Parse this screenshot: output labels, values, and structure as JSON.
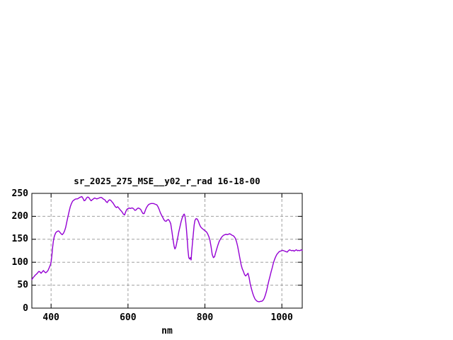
{
  "window": {
    "background": "#ffffff"
  },
  "chart_data": {
    "type": "line",
    "title": "sr_2025_275_MSE__y02_r_rad 16-18-00",
    "xlabel": "nm",
    "ylabel": "",
    "xlim": [
      350,
      1053
    ],
    "ylim": [
      0,
      250
    ],
    "xticks": [
      400,
      600,
      800,
      1000
    ],
    "yticks": [
      0,
      50,
      100,
      150,
      200,
      250
    ],
    "grid": true,
    "legend": false,
    "colors": {
      "line": "#9400d3",
      "grid": "#a0a0a0",
      "axis": "#000000",
      "text": "#000000"
    },
    "series": [
      {
        "name": "sr_2025_275_MSE__y02_r_rad",
        "color": "#9400d3",
        "points": [
          [
            350,
            62
          ],
          [
            353,
            66
          ],
          [
            356,
            69
          ],
          [
            359,
            72
          ],
          [
            362,
            74
          ],
          [
            365,
            77
          ],
          [
            368,
            80
          ],
          [
            371,
            79
          ],
          [
            374,
            76
          ],
          [
            377,
            79
          ],
          [
            380,
            82
          ],
          [
            383,
            79
          ],
          [
            386,
            77
          ],
          [
            389,
            79
          ],
          [
            392,
            82
          ],
          [
            395,
            88
          ],
          [
            398,
            94
          ],
          [
            400,
            100
          ],
          [
            402,
            115
          ],
          [
            404,
            132
          ],
          [
            406,
            146
          ],
          [
            408,
            155
          ],
          [
            410,
            160
          ],
          [
            412,
            164
          ],
          [
            414,
            166
          ],
          [
            416,
            167
          ],
          [
            418,
            168
          ],
          [
            420,
            168
          ],
          [
            423,
            165
          ],
          [
            426,
            162
          ],
          [
            429,
            160
          ],
          [
            432,
            163
          ],
          [
            435,
            168
          ],
          [
            438,
            176
          ],
          [
            441,
            188
          ],
          [
            444,
            200
          ],
          [
            447,
            211
          ],
          [
            450,
            221
          ],
          [
            453,
            228
          ],
          [
            456,
            233
          ],
          [
            459,
            235
          ],
          [
            462,
            237
          ],
          [
            465,
            238
          ],
          [
            468,
            238
          ],
          [
            471,
            239
          ],
          [
            474,
            241
          ],
          [
            477,
            242
          ],
          [
            480,
            243
          ],
          [
            483,
            239
          ],
          [
            486,
            234
          ],
          [
            489,
            235
          ],
          [
            492,
            240
          ],
          [
            495,
            242
          ],
          [
            498,
            241
          ],
          [
            501,
            237
          ],
          [
            504,
            234
          ],
          [
            507,
            236
          ],
          [
            510,
            238
          ],
          [
            513,
            240
          ],
          [
            516,
            239
          ],
          [
            519,
            238
          ],
          [
            522,
            239
          ],
          [
            525,
            240
          ],
          [
            528,
            241
          ],
          [
            531,
            241
          ],
          [
            534,
            239
          ],
          [
            537,
            237
          ],
          [
            540,
            236
          ],
          [
            543,
            232
          ],
          [
            546,
            230
          ],
          [
            549,
            234
          ],
          [
            552,
            236
          ],
          [
            555,
            235
          ],
          [
            558,
            232
          ],
          [
            561,
            229
          ],
          [
            564,
            225
          ],
          [
            567,
            221
          ],
          [
            570,
            219
          ],
          [
            573,
            221
          ],
          [
            576,
            218
          ],
          [
            579,
            215
          ],
          [
            582,
            212
          ],
          [
            585,
            209
          ],
          [
            588,
            205
          ],
          [
            591,
            203
          ],
          [
            594,
            210
          ],
          [
            597,
            215
          ],
          [
            600,
            217
          ],
          [
            603,
            218
          ],
          [
            606,
            217
          ],
          [
            609,
            218
          ],
          [
            612,
            218
          ],
          [
            615,
            216
          ],
          [
            618,
            213
          ],
          [
            621,
            214
          ],
          [
            624,
            217
          ],
          [
            627,
            218
          ],
          [
            630,
            217
          ],
          [
            633,
            215
          ],
          [
            636,
            210
          ],
          [
            639,
            206
          ],
          [
            642,
            206
          ],
          [
            645,
            213
          ],
          [
            648,
            219
          ],
          [
            651,
            223
          ],
          [
            654,
            226
          ],
          [
            657,
            227
          ],
          [
            660,
            228
          ],
          [
            663,
            228
          ],
          [
            666,
            228
          ],
          [
            669,
            227
          ],
          [
            672,
            226
          ],
          [
            675,
            225
          ],
          [
            678,
            221
          ],
          [
            681,
            215
          ],
          [
            684,
            208
          ],
          [
            687,
            203
          ],
          [
            690,
            198
          ],
          [
            693,
            193
          ],
          [
            696,
            190
          ],
          [
            699,
            189
          ],
          [
            702,
            192
          ],
          [
            705,
            193
          ],
          [
            708,
            190
          ],
          [
            711,
            184
          ],
          [
            714,
            168
          ],
          [
            717,
            150
          ],
          [
            720,
            134
          ],
          [
            722,
            129
          ],
          [
            724,
            132
          ],
          [
            726,
            139
          ],
          [
            729,
            152
          ],
          [
            732,
            166
          ],
          [
            735,
            177
          ],
          [
            738,
            188
          ],
          [
            741,
            197
          ],
          [
            744,
            203
          ],
          [
            746,
            205
          ],
          [
            748,
            201
          ],
          [
            750,
            188
          ],
          [
            752,
            172
          ],
          [
            754,
            150
          ],
          [
            756,
            126
          ],
          [
            758,
            110
          ],
          [
            760,
            107
          ],
          [
            762,
            110
          ],
          [
            764,
            105
          ],
          [
            766,
            126
          ],
          [
            768,
            145
          ],
          [
            770,
            163
          ],
          [
            772,
            181
          ],
          [
            774,
            191
          ],
          [
            777,
            195
          ],
          [
            780,
            194
          ],
          [
            783,
            189
          ],
          [
            786,
            182
          ],
          [
            789,
            177
          ],
          [
            792,
            174
          ],
          [
            795,
            172
          ],
          [
            798,
            170
          ],
          [
            801,
            168
          ],
          [
            804,
            166
          ],
          [
            807,
            162
          ],
          [
            810,
            156
          ],
          [
            813,
            148
          ],
          [
            816,
            134
          ],
          [
            819,
            117
          ],
          [
            822,
            110
          ],
          [
            825,
            112
          ],
          [
            828,
            121
          ],
          [
            831,
            130
          ],
          [
            834,
            138
          ],
          [
            837,
            145
          ],
          [
            840,
            150
          ],
          [
            843,
            154
          ],
          [
            846,
            157
          ],
          [
            849,
            159
          ],
          [
            852,
            160
          ],
          [
            855,
            161
          ],
          [
            858,
            160
          ],
          [
            861,
            161
          ],
          [
            864,
            162
          ],
          [
            867,
            161
          ],
          [
            870,
            159
          ],
          [
            873,
            158
          ],
          [
            876,
            156
          ],
          [
            879,
            152
          ],
          [
            882,
            145
          ],
          [
            885,
            135
          ],
          [
            888,
            122
          ],
          [
            891,
            108
          ],
          [
            894,
            95
          ],
          [
            897,
            86
          ],
          [
            900,
            80
          ],
          [
            903,
            73
          ],
          [
            906,
            70
          ],
          [
            909,
            73
          ],
          [
            912,
            76
          ],
          [
            915,
            66
          ],
          [
            918,
            52
          ],
          [
            921,
            42
          ],
          [
            924,
            33
          ],
          [
            927,
            26
          ],
          [
            930,
            20
          ],
          [
            933,
            17
          ],
          [
            936,
            15
          ],
          [
            939,
            14
          ],
          [
            942,
            14
          ],
          [
            945,
            15
          ],
          [
            948,
            15
          ],
          [
            951,
            17
          ],
          [
            954,
            21
          ],
          [
            957,
            28
          ],
          [
            960,
            37
          ],
          [
            963,
            48
          ],
          [
            966,
            59
          ],
          [
            969,
            69
          ],
          [
            972,
            79
          ],
          [
            975,
            88
          ],
          [
            978,
            98
          ],
          [
            981,
            106
          ],
          [
            984,
            112
          ],
          [
            987,
            117
          ],
          [
            990,
            120
          ],
          [
            993,
            123
          ],
          [
            996,
            124
          ],
          [
            999,
            125
          ],
          [
            1002,
            126
          ],
          [
            1005,
            125
          ],
          [
            1008,
            124
          ],
          [
            1011,
            123
          ],
          [
            1014,
            122
          ],
          [
            1017,
            125
          ],
          [
            1020,
            127
          ],
          [
            1023,
            126
          ],
          [
            1026,
            125
          ],
          [
            1029,
            126
          ],
          [
            1032,
            124
          ],
          [
            1035,
            126
          ],
          [
            1038,
            127
          ],
          [
            1041,
            125
          ],
          [
            1044,
            126
          ],
          [
            1047,
            125
          ],
          [
            1050,
            127
          ],
          [
            1053,
            126
          ]
        ]
      }
    ]
  }
}
